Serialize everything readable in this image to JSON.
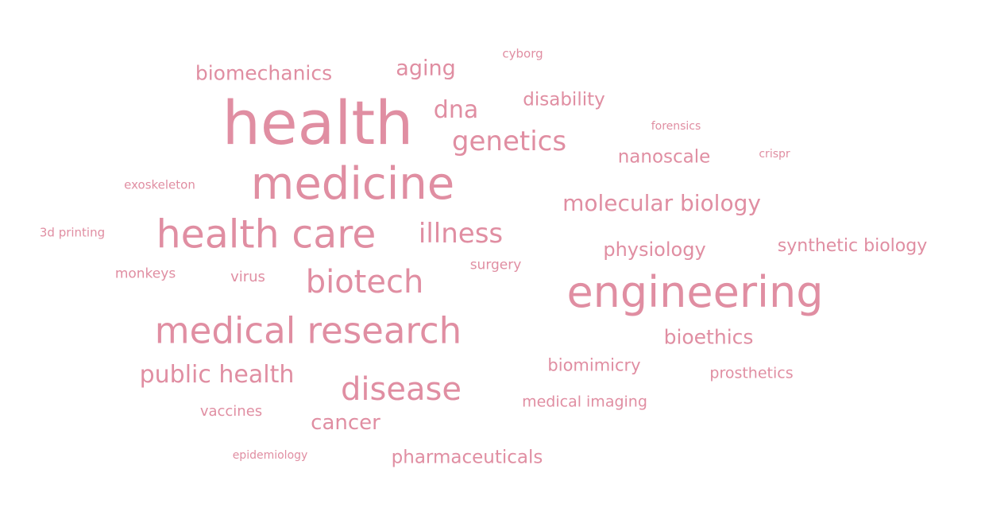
{
  "color": "#e08ea2",
  "words": [
    {
      "text": "health"
    },
    {
      "text": "medicine"
    },
    {
      "text": "engineering"
    },
    {
      "text": "health care"
    },
    {
      "text": "medical research"
    },
    {
      "text": "biotech"
    },
    {
      "text": "disease"
    },
    {
      "text": "genetics"
    },
    {
      "text": "illness"
    },
    {
      "text": "molecular biology"
    },
    {
      "text": "public health"
    },
    {
      "text": "dna"
    },
    {
      "text": "biomechanics"
    },
    {
      "text": "aging"
    },
    {
      "text": "disability"
    },
    {
      "text": "nanoscale"
    },
    {
      "text": "physiology"
    },
    {
      "text": "synthetic biology"
    },
    {
      "text": "bioethics"
    },
    {
      "text": "cancer"
    },
    {
      "text": "pharmaceuticals"
    },
    {
      "text": "biomimicry"
    },
    {
      "text": "prosthetics"
    },
    {
      "text": "medical imaging"
    },
    {
      "text": "vaccines"
    },
    {
      "text": "virus"
    },
    {
      "text": "monkeys"
    },
    {
      "text": "surgery"
    },
    {
      "text": "exoskeleton"
    },
    {
      "text": "3d printing"
    },
    {
      "text": "cyborg"
    },
    {
      "text": "forensics"
    },
    {
      "text": "crispr"
    },
    {
      "text": "epidemiology"
    }
  ]
}
